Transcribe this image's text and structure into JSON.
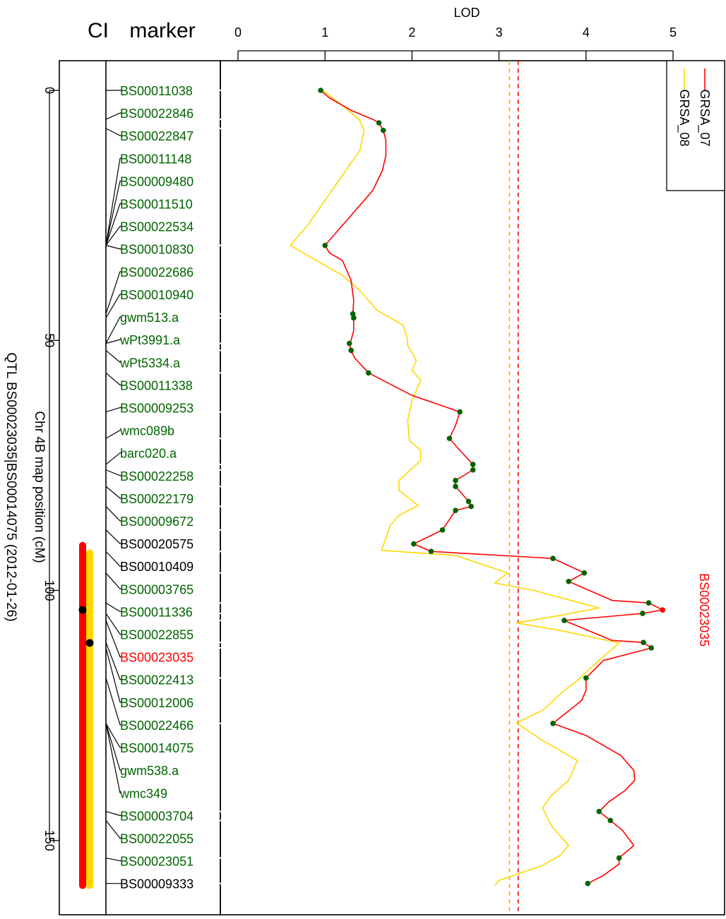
{
  "header": {
    "ci_label": "CI",
    "marker_label": "marker"
  },
  "chart_data": {
    "type": "line",
    "orientation": "vertical",
    "title": "QTL BS00023035|BS00014075 (2012-01-26)",
    "xlabel": "LOD",
    "ylabel": "Chr 4B map position (cM)",
    "xlim": [
      -0.2,
      5.5
    ],
    "ylim": [
      -6,
      164
    ],
    "x_ticks": [
      0,
      1,
      2,
      3,
      4,
      5
    ],
    "y_ticks": [
      0,
      50,
      100,
      150
    ],
    "grid": false,
    "legend_position": "top-right",
    "colors": {
      "GRSA_07": "#ff0000",
      "GRSA_08": "#ffd700",
      "point": "#006400",
      "peak": "#ff0000",
      "marker_green": "#006400",
      "marker_black": "#000000",
      "marker_red": "#ff0000"
    },
    "thresholds": [
      {
        "series": "GRSA_07",
        "lod": 3.22,
        "color": "#ff0000"
      },
      {
        "series": "GRSA_08",
        "lod": 3.12,
        "color": "#ffa500"
      }
    ],
    "peak_label": {
      "text": "BS00023035",
      "lod": 4.88,
      "pos": 103.9
    },
    "series": [
      {
        "name": "GRSA_07",
        "color": "#ff0000",
        "points": [
          [
            0.95,
            0
          ],
          [
            1.05,
            1.5
          ],
          [
            1.3,
            4
          ],
          [
            1.55,
            5.8
          ],
          [
            1.62,
            6.5
          ],
          [
            1.67,
            8
          ],
          [
            1.7,
            10
          ],
          [
            1.7,
            13
          ],
          [
            1.66,
            16
          ],
          [
            1.55,
            20
          ],
          [
            1.3,
            25
          ],
          [
            1.15,
            28
          ],
          [
            1.0,
            31
          ],
          [
            1.05,
            32.5
          ],
          [
            1.2,
            34
          ],
          [
            1.3,
            38
          ],
          [
            1.33,
            42
          ],
          [
            1.32,
            44.7
          ],
          [
            1.33,
            45.5
          ],
          [
            1.33,
            48
          ],
          [
            1.3,
            50
          ],
          [
            1.28,
            50.6
          ],
          [
            1.3,
            52
          ],
          [
            1.34,
            53.5
          ],
          [
            1.5,
            56.5
          ],
          [
            2.0,
            61
          ],
          [
            2.5,
            64
          ],
          [
            2.55,
            64.3
          ],
          [
            2.5,
            67
          ],
          [
            2.43,
            69.6
          ],
          [
            2.55,
            72
          ],
          [
            2.7,
            74.8
          ],
          [
            2.7,
            75.9
          ],
          [
            2.5,
            78
          ],
          [
            2.5,
            79.2
          ],
          [
            2.65,
            82.2
          ],
          [
            2.68,
            83.2
          ],
          [
            2.5,
            84
          ],
          [
            2.35,
            87.9
          ],
          [
            2.02,
            90.7
          ],
          [
            2.22,
            92.2
          ],
          [
            3.62,
            93.6
          ],
          [
            3.98,
            96.5
          ],
          [
            3.8,
            98.2
          ],
          [
            4.3,
            102
          ],
          [
            4.72,
            102.5
          ],
          [
            4.88,
            103.9
          ],
          [
            4.65,
            104.6
          ],
          [
            3.75,
            106
          ],
          [
            4.3,
            110
          ],
          [
            4.66,
            110.4
          ],
          [
            4.75,
            111.5
          ],
          [
            4.2,
            114
          ],
          [
            4.0,
            117.5
          ],
          [
            4.0,
            120
          ],
          [
            3.95,
            122
          ],
          [
            3.62,
            126.6
          ],
          [
            4.0,
            129
          ],
          [
            4.4,
            133
          ],
          [
            4.55,
            136
          ],
          [
            4.56,
            138
          ],
          [
            4.45,
            140
          ],
          [
            4.26,
            142.3
          ],
          [
            4.15,
            144.2
          ],
          [
            4.28,
            146
          ],
          [
            4.42,
            148
          ],
          [
            4.55,
            151
          ],
          [
            4.38,
            153.5
          ],
          [
            4.38,
            154.7
          ],
          [
            4.2,
            157
          ],
          [
            4.02,
            158.6
          ]
        ],
        "marked_points": [
          [
            0.95,
            0
          ],
          [
            1.62,
            6.5
          ],
          [
            1.67,
            8
          ],
          [
            1.0,
            31
          ],
          [
            1.32,
            44.7
          ],
          [
            1.33,
            45.5
          ],
          [
            1.28,
            50.6
          ],
          [
            1.3,
            52
          ],
          [
            1.5,
            56.5
          ],
          [
            2.55,
            64.3
          ],
          [
            2.43,
            69.6
          ],
          [
            2.7,
            74.8
          ],
          [
            2.7,
            75.9
          ],
          [
            2.5,
            78
          ],
          [
            2.5,
            79.2
          ],
          [
            2.65,
            82.2
          ],
          [
            2.68,
            83.2
          ],
          [
            2.5,
            84
          ],
          [
            2.35,
            87.9
          ],
          [
            2.02,
            90.7
          ],
          [
            2.22,
            92.2
          ],
          [
            3.62,
            93.6
          ],
          [
            3.98,
            96.5
          ],
          [
            3.8,
            98.2
          ],
          [
            4.72,
            102.5
          ],
          [
            4.65,
            104.6
          ],
          [
            3.75,
            106
          ],
          [
            4.66,
            110.4
          ],
          [
            4.75,
            111.5
          ],
          [
            4.0,
            117.5
          ],
          [
            3.62,
            126.6
          ],
          [
            4.15,
            144.2
          ],
          [
            4.28,
            146
          ],
          [
            4.38,
            153.5
          ],
          [
            4.02,
            158.6
          ]
        ]
      },
      {
        "name": "GRSA_08",
        "color": "#ffd700",
        "points": [
          [
            0.97,
            0
          ],
          [
            1.2,
            3
          ],
          [
            1.4,
            6
          ],
          [
            1.45,
            8
          ],
          [
            1.4,
            12
          ],
          [
            1.2,
            17
          ],
          [
            1.0,
            22
          ],
          [
            0.8,
            27
          ],
          [
            0.6,
            31
          ],
          [
            0.9,
            34
          ],
          [
            1.2,
            37
          ],
          [
            1.4,
            40
          ],
          [
            1.6,
            44
          ],
          [
            1.9,
            47
          ],
          [
            1.95,
            50
          ],
          [
            1.95,
            51
          ],
          [
            2.05,
            54
          ],
          [
            2.0,
            56
          ],
          [
            2.1,
            58
          ],
          [
            2.0,
            62
          ],
          [
            1.95,
            66
          ],
          [
            1.97,
            70
          ],
          [
            2.1,
            72
          ],
          [
            2.1,
            74
          ],
          [
            1.85,
            78
          ],
          [
            1.85,
            80
          ],
          [
            2.07,
            83
          ],
          [
            1.85,
            85
          ],
          [
            1.75,
            87
          ],
          [
            1.65,
            92
          ],
          [
            2.5,
            93
          ],
          [
            3.1,
            96.5
          ],
          [
            2.95,
            98.5
          ],
          [
            3.4,
            100
          ],
          [
            4.15,
            103.5
          ],
          [
            3.7,
            105
          ],
          [
            3.2,
            106.5
          ],
          [
            3.7,
            108
          ],
          [
            4.38,
            110.5
          ],
          [
            4.15,
            114
          ],
          [
            3.9,
            118
          ],
          [
            3.75,
            120
          ],
          [
            3.5,
            124
          ],
          [
            3.2,
            126.5
          ],
          [
            3.5,
            130
          ],
          [
            3.7,
            132
          ],
          [
            3.9,
            134
          ],
          [
            3.8,
            138
          ],
          [
            3.6,
            141
          ],
          [
            3.5,
            143.5
          ],
          [
            3.6,
            147
          ],
          [
            3.7,
            149
          ],
          [
            3.8,
            151
          ],
          [
            3.7,
            153
          ],
          [
            3.5,
            155
          ],
          [
            3.0,
            158
          ],
          [
            2.95,
            159
          ]
        ]
      }
    ],
    "ci_bars": [
      {
        "series": "GRSA_07",
        "color": "#ff0000",
        "from": 91,
        "to": 159,
        "peak": 103.9
      },
      {
        "series": "GRSA_08",
        "color": "#ffd700",
        "from": 92.5,
        "to": 159,
        "peak": 110.5
      }
    ],
    "markers": [
      {
        "name": "BS00011038",
        "pos": 0.0,
        "color": "#006400"
      },
      {
        "name": "BS00022846",
        "pos": 5.8,
        "color": "#006400"
      },
      {
        "name": "BS00022847",
        "pos": 7.6,
        "color": "#006400"
      },
      {
        "name": "BS00011148",
        "pos": 31.0,
        "color": "#006400"
      },
      {
        "name": "BS00009480",
        "pos": 31.0,
        "color": "#006400"
      },
      {
        "name": "BS00011510",
        "pos": 31.0,
        "color": "#006400"
      },
      {
        "name": "BS00022534",
        "pos": 31.0,
        "color": "#006400"
      },
      {
        "name": "BS00010830",
        "pos": 31.0,
        "color": "#006400"
      },
      {
        "name": "BS00022686",
        "pos": 44.7,
        "color": "#006400"
      },
      {
        "name": "BS00010940",
        "pos": 45.5,
        "color": "#006400"
      },
      {
        "name": "gwm513.a",
        "pos": 50.6,
        "color": "#006400"
      },
      {
        "name": "wPt3991.a",
        "pos": 50.6,
        "color": "#006400"
      },
      {
        "name": "wPt5334.a",
        "pos": 52.0,
        "color": "#006400"
      },
      {
        "name": "BS00011338",
        "pos": 56.5,
        "color": "#006400"
      },
      {
        "name": "BS00009253",
        "pos": 64.3,
        "color": "#006400"
      },
      {
        "name": "wmc089b",
        "pos": 69.6,
        "color": "#006400"
      },
      {
        "name": "barc020.a",
        "pos": 74.8,
        "color": "#006400"
      },
      {
        "name": "BS00022258",
        "pos": 75.9,
        "color": "#006400"
      },
      {
        "name": "BS00022179",
        "pos": 79.2,
        "color": "#006400"
      },
      {
        "name": "BS00009672",
        "pos": 83.2,
        "color": "#006400"
      },
      {
        "name": "BS00020575",
        "pos": 87.9,
        "color": "#000000"
      },
      {
        "name": "BS00010409",
        "pos": 92.2,
        "color": "#000000"
      },
      {
        "name": "BS00003765",
        "pos": 96.5,
        "color": "#006400"
      },
      {
        "name": "BS00011336",
        "pos": 102.5,
        "color": "#006400"
      },
      {
        "name": "BS00022855",
        "pos": 104.6,
        "color": "#006400"
      },
      {
        "name": "BS00023035",
        "pos": 106.0,
        "color": "#ff0000"
      },
      {
        "name": "BS00022413",
        "pos": 110.4,
        "color": "#006400"
      },
      {
        "name": "BS00012006",
        "pos": 111.5,
        "color": "#006400"
      },
      {
        "name": "BS00022466",
        "pos": 117.5,
        "color": "#006400"
      },
      {
        "name": "BS00014075",
        "pos": 126.6,
        "color": "#006400"
      },
      {
        "name": "gwm538.a",
        "pos": 126.6,
        "color": "#006400"
      },
      {
        "name": "wmc349",
        "pos": 126.6,
        "color": "#006400"
      },
      {
        "name": "BS00003704",
        "pos": 144.2,
        "color": "#006400"
      },
      {
        "name": "BS00022055",
        "pos": 146.0,
        "color": "#006400"
      },
      {
        "name": "BS00023051",
        "pos": 153.5,
        "color": "#006400"
      },
      {
        "name": "BS00009333",
        "pos": 158.6,
        "color": "#000000"
      }
    ]
  }
}
